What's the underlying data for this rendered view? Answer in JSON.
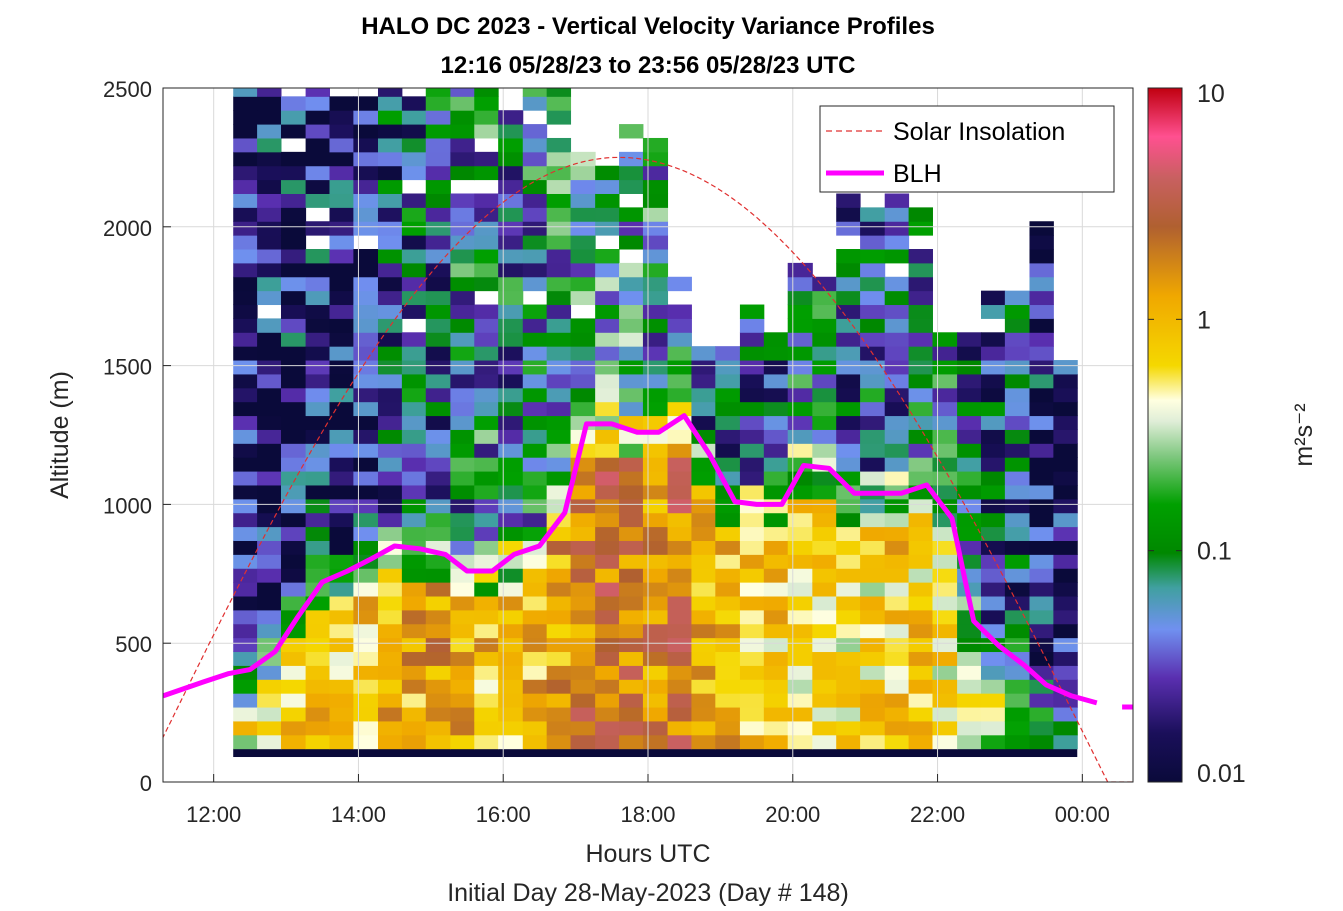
{
  "chart_data": {
    "type": "heatmap",
    "title": "HALO DC 2023 - Vertical Velocity Variance Profiles",
    "subtitle": "12:16 05/28/23 to 23:56 05/28/23  UTC",
    "xlabel": "Hours UTC",
    "footer": "Initial Day 28-May-2023 (Day # 148)",
    "ylabel": "Altitude (m)",
    "x_range_hours": [
      11.3,
      24.7
    ],
    "x_ticks": [
      {
        "value": 12,
        "label": "12:00"
      },
      {
        "value": 14,
        "label": "14:00"
      },
      {
        "value": 16,
        "label": "16:00"
      },
      {
        "value": 18,
        "label": "18:00"
      },
      {
        "value": 20,
        "label": "20:00"
      },
      {
        "value": 22,
        "label": "22:00"
      },
      {
        "value": 24,
        "label": "00:00"
      }
    ],
    "ylim": [
      0,
      2500
    ],
    "y_ticks": [
      0,
      500,
      1000,
      1500,
      2000,
      2500
    ],
    "grid": true,
    "colorbar": {
      "label": "m²s⁻²",
      "scale": "log",
      "range": [
        0.01,
        10
      ],
      "ticks": [
        {
          "value": 0.01,
          "label": "0.01"
        },
        {
          "value": 0.1,
          "label": "0.1"
        },
        {
          "value": 1,
          "label": "1"
        },
        {
          "value": 10,
          "label": "10"
        }
      ]
    },
    "legend": {
      "position": "top-right",
      "entries": [
        {
          "name": "Solar Insolation",
          "style": "dashed",
          "color": "#e03030"
        },
        {
          "name": "BLH",
          "style": "solid",
          "color": "#ff00ff"
        }
      ]
    },
    "series": [
      {
        "name": "BLH",
        "color": "#ff00ff",
        "x": [
          11.3,
          11.85,
          12.2,
          12.5,
          12.85,
          13.15,
          13.5,
          13.85,
          14.15,
          14.5,
          14.85,
          15.2,
          15.5,
          15.85,
          16.15,
          16.5,
          16.85,
          17.15,
          17.5,
          17.85,
          18.15,
          18.5,
          18.85,
          19.2,
          19.5,
          19.85,
          20.15,
          20.5,
          20.85,
          21.15,
          21.5,
          21.85,
          22.2,
          22.5,
          22.85,
          23.2,
          23.5,
          23.85,
          24.2
        ],
        "y": [
          310,
          360,
          390,
          405,
          470,
          590,
          720,
          760,
          800,
          850,
          840,
          820,
          760,
          760,
          820,
          850,
          970,
          1290,
          1290,
          1260,
          1260,
          1320,
          1180,
          1010,
          1000,
          1000,
          1140,
          1130,
          1040,
          1040,
          1040,
          1070,
          950,
          580,
          490,
          420,
          350,
          310,
          285
        ]
      },
      {
        "name": "BLH (next day)",
        "color": "#ff00ff",
        "x": [
          24.55,
          24.7
        ],
        "y": [
          270,
          270
        ]
      },
      {
        "name": "Solar Insolation",
        "color": "#e03030",
        "normalized_shape": "half-sine",
        "x_start": 11.0,
        "x_peak": 17.6,
        "x_end": 24.35,
        "peak_altitude": 2250
      }
    ],
    "heatmap": {
      "x_start_hours": 12.27,
      "x_end_hours": 23.93,
      "bin_altitude_m": 50,
      "lowest_bin_m": 120,
      "band_value": 0.01,
      "profiles": [
        {
          "x0": 12.27,
          "x1": 12.6,
          "top": 2500,
          "bl_top": 390,
          "bl_value": 0.55,
          "free_value": 0.015
        },
        {
          "x0": 12.6,
          "x1": 12.93,
          "top": 2500,
          "bl_top": 460,
          "bl_value": 0.6,
          "free_value": 0.02
        },
        {
          "x0": 12.93,
          "x1": 13.27,
          "top": 2450,
          "bl_top": 600,
          "bl_value": 0.7,
          "free_value": 0.02
        },
        {
          "x0": 13.27,
          "x1": 13.6,
          "top": 2500,
          "bl_top": 720,
          "bl_value": 0.75,
          "free_value": 0.025
        },
        {
          "x0": 13.6,
          "x1": 13.93,
          "top": 2450,
          "bl_top": 760,
          "bl_value": 0.8,
          "free_value": 0.02
        },
        {
          "x0": 13.93,
          "x1": 14.27,
          "top": 2450,
          "bl_top": 800,
          "bl_value": 0.9,
          "free_value": 0.02
        },
        {
          "x0": 14.27,
          "x1": 14.6,
          "top": 2500,
          "bl_top": 850,
          "bl_value": 1.0,
          "free_value": 0.04
        },
        {
          "x0": 14.6,
          "x1": 14.93,
          "top": 2450,
          "bl_top": 840,
          "bl_value": 1.1,
          "free_value": 0.05
        },
        {
          "x0": 14.93,
          "x1": 15.27,
          "top": 2500,
          "bl_top": 820,
          "bl_value": 1.2,
          "free_value": 0.05
        },
        {
          "x0": 15.27,
          "x1": 15.6,
          "top": 2500,
          "bl_top": 760,
          "bl_value": 1.0,
          "free_value": 0.07
        },
        {
          "x0": 15.6,
          "x1": 15.93,
          "top": 2500,
          "bl_top": 760,
          "bl_value": 0.9,
          "free_value": 0.08
        },
        {
          "x0": 15.93,
          "x1": 16.27,
          "top": 2400,
          "bl_top": 820,
          "bl_value": 0.9,
          "free_value": 0.06
        },
        {
          "x0": 16.27,
          "x1": 16.6,
          "top": 2500,
          "bl_top": 850,
          "bl_value": 1.0,
          "free_value": 0.07
        },
        {
          "x0": 16.6,
          "x1": 16.93,
          "top": 2500,
          "bl_top": 970,
          "bl_value": 1.3,
          "free_value": 0.08
        },
        {
          "x0": 16.93,
          "x1": 17.27,
          "top": 2250,
          "bl_top": 1290,
          "bl_value": 1.8,
          "free_value": 0.1
        },
        {
          "x0": 17.27,
          "x1": 17.6,
          "top": 2200,
          "bl_top": 1290,
          "bl_value": 2.0,
          "free_value": 0.12
        },
        {
          "x0": 17.6,
          "x1": 17.93,
          "top": 2350,
          "bl_top": 1260,
          "bl_value": 1.8,
          "free_value": 0.1
        },
        {
          "x0": 17.93,
          "x1": 18.27,
          "top": 2300,
          "bl_top": 1260,
          "bl_value": 1.5,
          "free_value": 0.08
        },
        {
          "x0": 18.27,
          "x1": 18.6,
          "top": 1800,
          "bl_top": 1320,
          "bl_value": 2.0,
          "free_value": 0.06
        },
        {
          "x0": 18.6,
          "x1": 18.93,
          "top": 1550,
          "bl_top": 1180,
          "bl_value": 1.2,
          "free_value": 0.05
        },
        {
          "x0": 18.93,
          "x1": 19.27,
          "top": 1550,
          "bl_top": 1010,
          "bl_value": 1.0,
          "free_value": 0.04
        },
        {
          "x0": 19.27,
          "x1": 19.6,
          "top": 1700,
          "bl_top": 1000,
          "bl_value": 0.8,
          "free_value": 0.05
        },
        {
          "x0": 19.6,
          "x1": 19.93,
          "top": 1600,
          "bl_top": 1000,
          "bl_value": 0.7,
          "free_value": 0.05
        },
        {
          "x0": 19.93,
          "x1": 20.27,
          "top": 1850,
          "bl_top": 1140,
          "bl_value": 0.6,
          "free_value": 0.06
        },
        {
          "x0": 20.27,
          "x1": 20.6,
          "top": 1800,
          "bl_top": 1130,
          "bl_value": 0.6,
          "free_value": 0.07
        },
        {
          "x0": 20.6,
          "x1": 20.93,
          "top": 2100,
          "bl_top": 1040,
          "bl_value": 0.5,
          "free_value": 0.05
        },
        {
          "x0": 20.93,
          "x1": 21.27,
          "top": 2050,
          "bl_top": 1040,
          "bl_value": 0.6,
          "free_value": 0.05
        },
        {
          "x0": 21.27,
          "x1": 21.6,
          "top": 2100,
          "bl_top": 1040,
          "bl_value": 0.8,
          "free_value": 0.06
        },
        {
          "x0": 21.6,
          "x1": 21.93,
          "top": 2050,
          "bl_top": 1070,
          "bl_value": 0.7,
          "free_value": 0.05
        },
        {
          "x0": 21.93,
          "x1": 22.27,
          "top": 1600,
          "bl_top": 950,
          "bl_value": 0.6,
          "free_value": 0.08
        },
        {
          "x0": 22.27,
          "x1": 22.6,
          "top": 1600,
          "bl_top": 580,
          "bl_value": 0.4,
          "free_value": 0.05
        },
        {
          "x0": 22.6,
          "x1": 22.93,
          "top": 1750,
          "bl_top": 490,
          "bl_value": 0.3,
          "free_value": 0.04
        },
        {
          "x0": 22.93,
          "x1": 23.27,
          "top": 1750,
          "bl_top": 420,
          "bl_value": 0.2,
          "free_value": 0.04
        },
        {
          "x0": 23.27,
          "x1": 23.6,
          "top": 2050,
          "bl_top": 350,
          "bl_value": 0.15,
          "free_value": 0.02
        },
        {
          "x0": 23.6,
          "x1": 23.93,
          "top": 1500,
          "bl_top": 310,
          "bl_value": 0.1,
          "free_value": 0.015
        }
      ]
    }
  }
}
